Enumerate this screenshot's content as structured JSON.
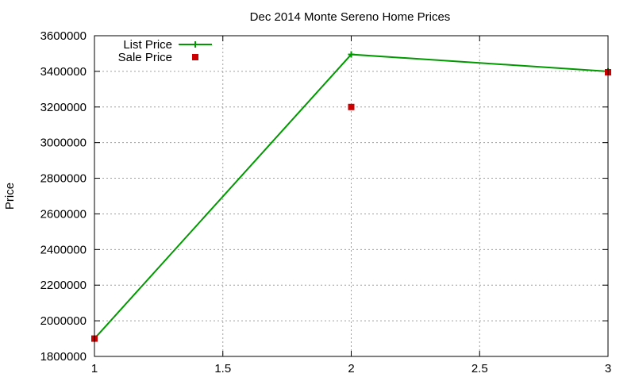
{
  "chart_data": {
    "type": "line",
    "title": "Dec 2014 Monte Sereno Home Prices",
    "xlabel": "",
    "ylabel": "Price",
    "xlim": [
      1,
      3
    ],
    "ylim": [
      1800000,
      3600000
    ],
    "x_ticks": [
      "1",
      "1.5",
      "2",
      "2.5",
      "3"
    ],
    "y_ticks": [
      "1800000",
      "2000000",
      "2200000",
      "2400000",
      "2600000",
      "2800000",
      "3000000",
      "3200000",
      "3400000",
      "3600000"
    ],
    "grid": true,
    "legend_position": "top-left",
    "series": [
      {
        "name": "List Price",
        "style": "line+plus-markers",
        "color": "#009900",
        "x": [
          1,
          2,
          3
        ],
        "y": [
          1900000,
          3495000,
          3400000
        ]
      },
      {
        "name": "Sale Price",
        "style": "square-markers",
        "color": "#cc0000",
        "x": [
          1,
          2,
          3
        ],
        "y": [
          1900000,
          3200000,
          3395000
        ]
      }
    ]
  }
}
